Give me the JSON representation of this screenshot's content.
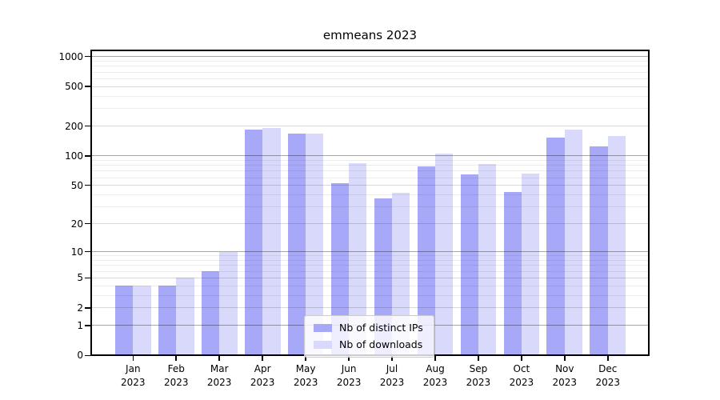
{
  "title": "emmeans 2023",
  "chart_data": {
    "type": "bar",
    "scale": "log1p",
    "title": "emmeans 2023",
    "xlabel": "",
    "ylabel": "",
    "categories": [
      "Jan",
      "Feb",
      "Mar",
      "Apr",
      "May",
      "Jun",
      "Jul",
      "Aug",
      "Sep",
      "Oct",
      "Nov",
      "Dec"
    ],
    "category_year": "2023",
    "series": [
      {
        "name": "Nb of distinct IPs",
        "color": "#a8a8f8",
        "values": [
          4,
          4,
          6,
          183,
          167,
          53,
          37,
          78,
          65,
          43,
          152,
          124
        ]
      },
      {
        "name": "Nb of downloads",
        "color": "#d9d9fb",
        "values": [
          4,
          5,
          10,
          192,
          168,
          84,
          42,
          106,
          82,
          66,
          185,
          160
        ]
      }
    ],
    "ylim": [
      0,
      1175
    ],
    "yticks": [
      0,
      1,
      2,
      5,
      10,
      20,
      50,
      100,
      200,
      500,
      1000
    ],
    "yticks_power": [
      1,
      10,
      100,
      1000
    ],
    "yticks_minor": [
      3,
      4,
      6,
      7,
      8,
      9,
      30,
      40,
      60,
      70,
      80,
      90,
      300,
      400,
      600,
      700,
      800,
      900
    ],
    "grid": "horizontal",
    "legend_position": "lower-center"
  },
  "colors": {
    "bar_distinct_ips": "#a8a8f8",
    "bar_downloads": "#d9d9fb",
    "spine": "#000000",
    "legend_border": "#cccccc"
  }
}
